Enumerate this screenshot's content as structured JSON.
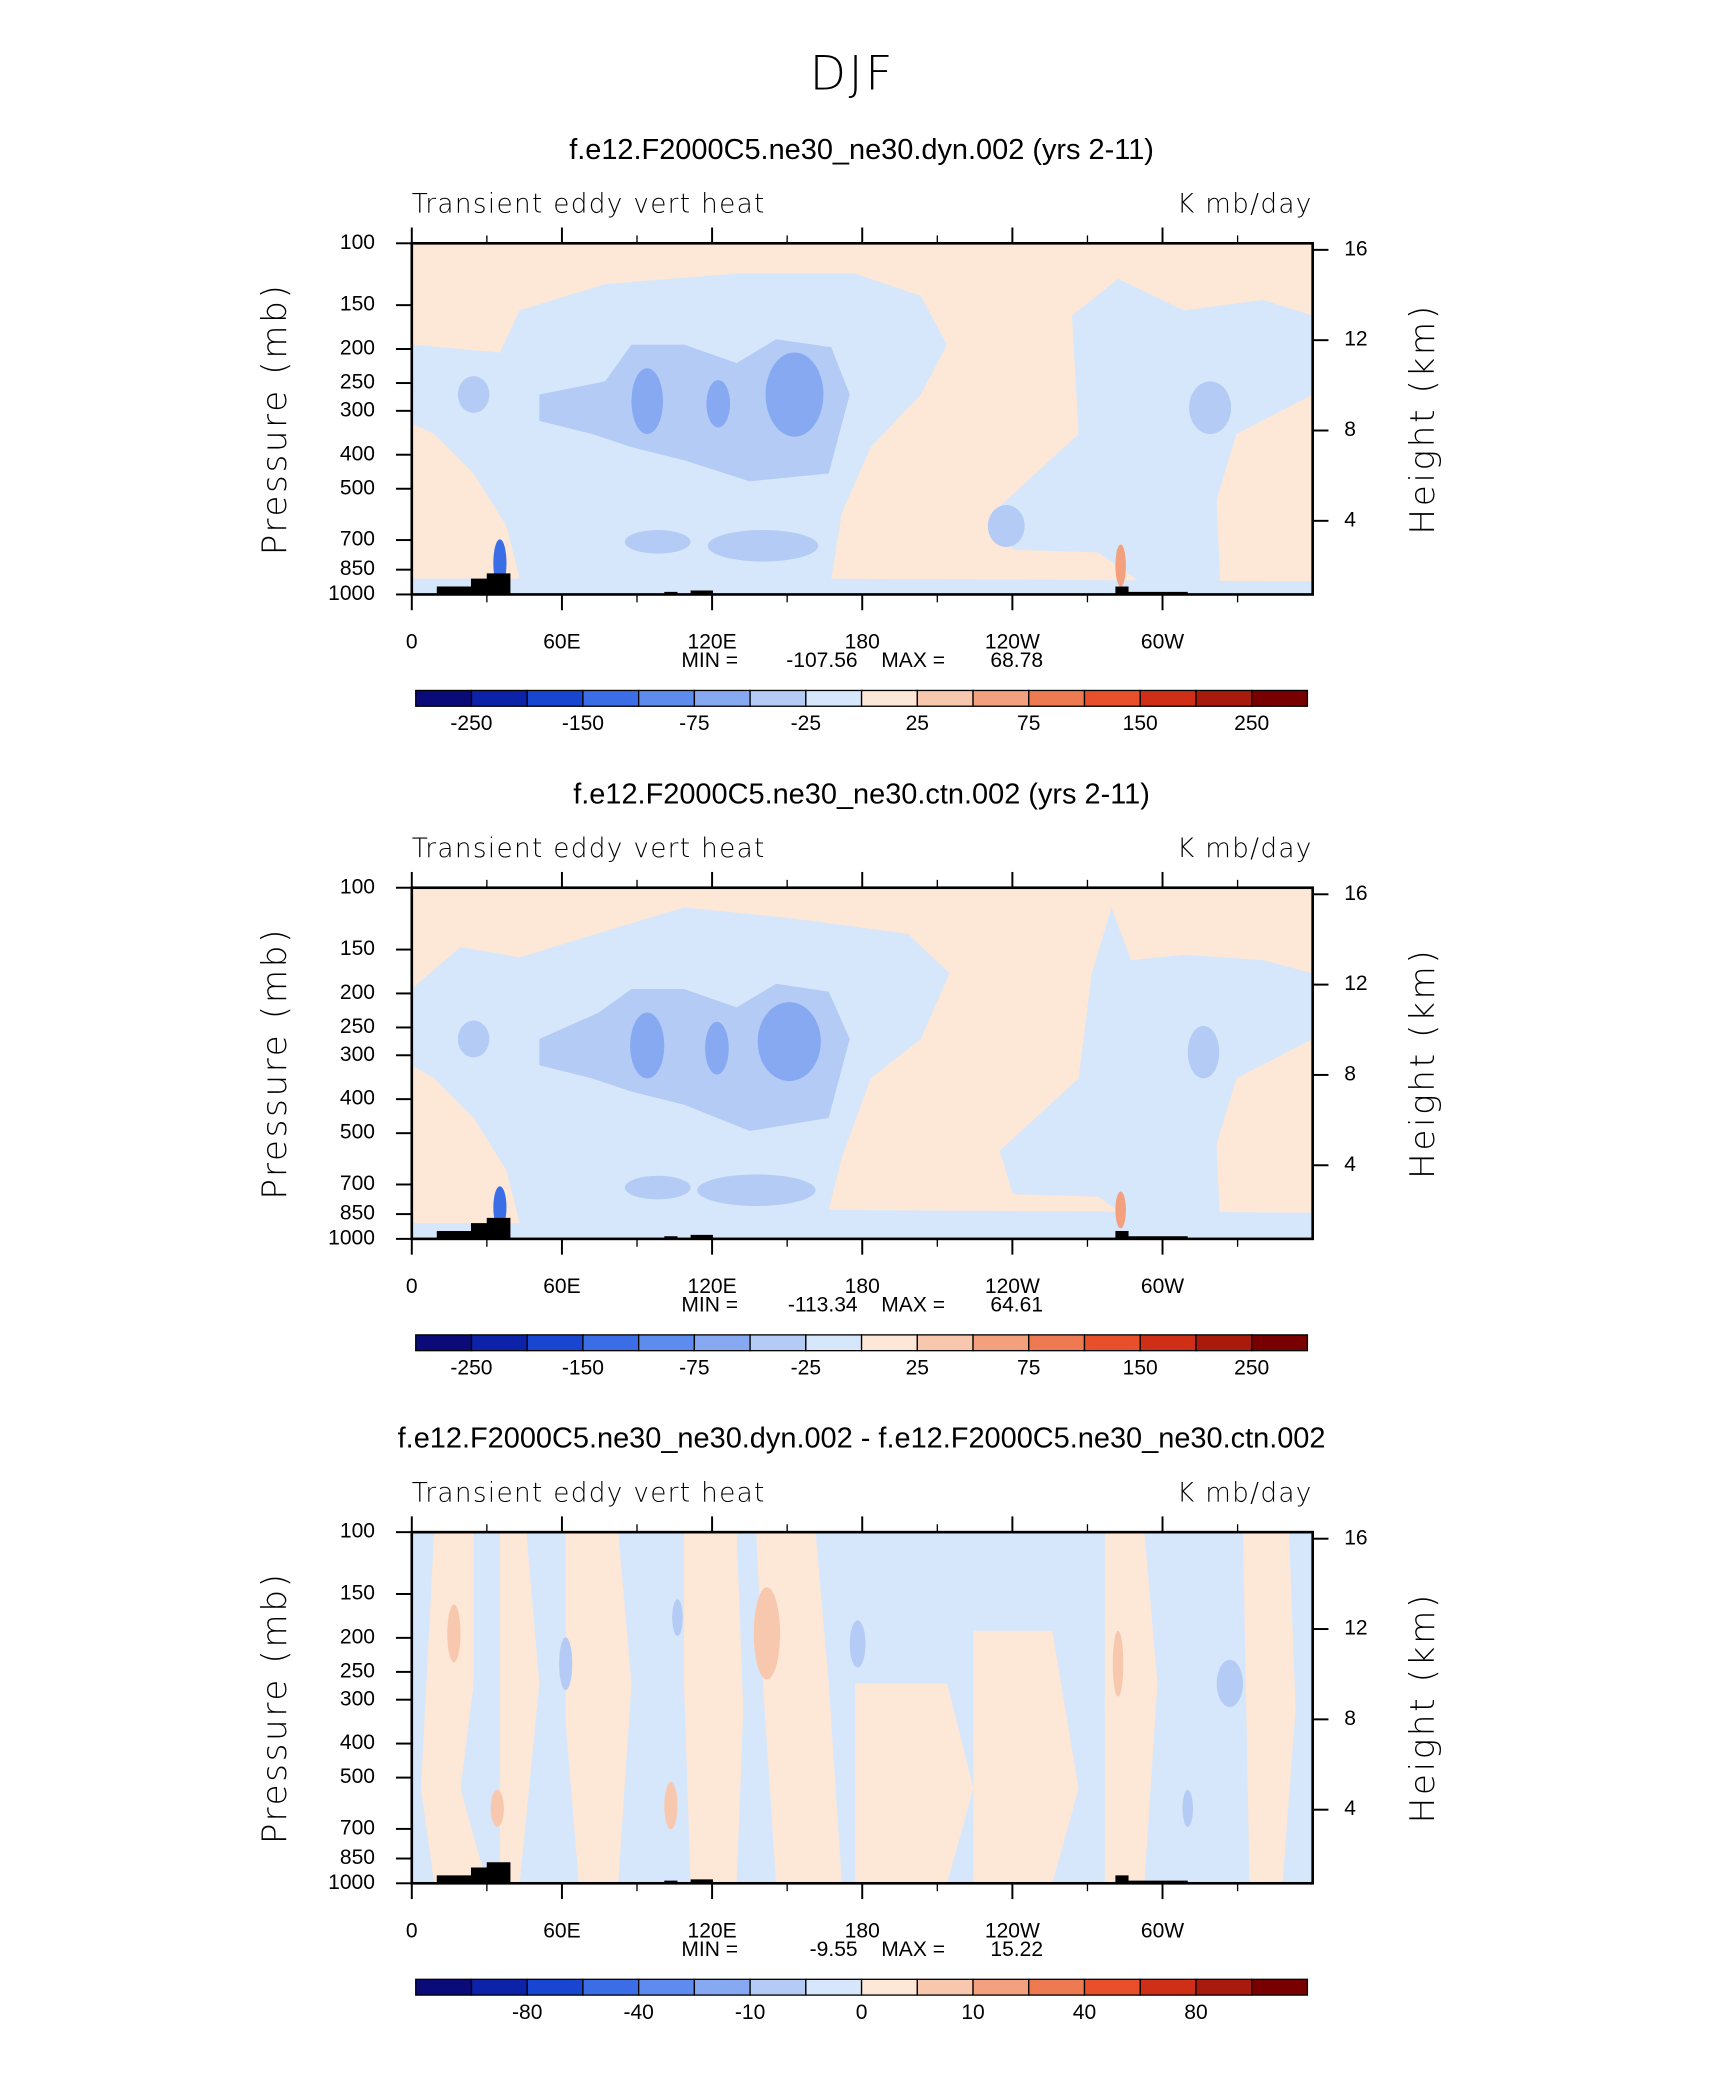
{
  "title": "DJF",
  "chart_data": [
    {
      "type": "contour",
      "title": "f.e12.F2000C5.ne30_ne30.dyn.002 (yrs 2-11)",
      "left_text": "Transient eddy vert heat",
      "right_text": "K mb/day",
      "ylabel": "Pressure (mb)",
      "y2label": "Height (km)",
      "ylim": [
        1000,
        100
      ],
      "yscale": "log",
      "yticks": [
        100,
        150,
        200,
        250,
        300,
        400,
        500,
        700,
        850,
        1000
      ],
      "y2lim": [
        0.74,
        16.29
      ],
      "y2ticks": [
        4,
        8,
        12,
        16
      ],
      "xlim": [
        0,
        360
      ],
      "xticks": [
        0,
        {
          "value": 60,
          "label": "60E"
        },
        {
          "value": 120,
          "label": "120E"
        },
        180,
        {
          "value": 240,
          "label": "120W"
        },
        {
          "value": 300,
          "label": "60W"
        }
      ],
      "min_label": "MIN =",
      "min": -107.56,
      "max_label": "MAX =",
      "max": 68.78,
      "colorbar": {
        "colors": [
          "#0a0a78",
          "#0c22a8",
          "#1846d0",
          "#3b6ee6",
          "#5d8cee",
          "#87a9f2",
          "#b4cbf6",
          "#d7e7fb",
          "#fde7d6",
          "#f8c8ae",
          "#f3a07f",
          "#ee7a52",
          "#e8502c",
          "#cf2f16",
          "#a81a0b",
          "#780000"
        ],
        "ticks": [
          -250,
          -150,
          -75,
          -25,
          25,
          75,
          150,
          250
        ]
      }
    },
    {
      "type": "contour",
      "title": "f.e12.F2000C5.ne30_ne30.ctn.002 (yrs 2-11)",
      "left_text": "Transient eddy vert heat",
      "right_text": "K mb/day",
      "ylabel": "Pressure (mb)",
      "y2label": "Height (km)",
      "ylim": [
        1000,
        100
      ],
      "yscale": "log",
      "yticks": [
        100,
        150,
        200,
        250,
        300,
        400,
        500,
        700,
        850,
        1000
      ],
      "y2lim": [
        0.74,
        16.29
      ],
      "y2ticks": [
        4,
        8,
        12,
        16
      ],
      "xlim": [
        0,
        360
      ],
      "xticks": [
        0,
        {
          "value": 60,
          "label": "60E"
        },
        {
          "value": 120,
          "label": "120E"
        },
        180,
        {
          "value": 240,
          "label": "120W"
        },
        {
          "value": 300,
          "label": "60W"
        }
      ],
      "min_label": "MIN =",
      "min": -113.34,
      "max_label": "MAX =",
      "max": 64.61,
      "colorbar": {
        "colors": [
          "#0a0a78",
          "#0c22a8",
          "#1846d0",
          "#3b6ee6",
          "#5d8cee",
          "#87a9f2",
          "#b4cbf6",
          "#d7e7fb",
          "#fde7d6",
          "#f8c8ae",
          "#f3a07f",
          "#ee7a52",
          "#e8502c",
          "#cf2f16",
          "#a81a0b",
          "#780000"
        ],
        "ticks": [
          -250,
          -150,
          -75,
          -25,
          25,
          75,
          150,
          250
        ]
      }
    },
    {
      "type": "contour",
      "title": "f.e12.F2000C5.ne30_ne30.dyn.002 - f.e12.F2000C5.ne30_ne30.ctn.002",
      "left_text": "Transient eddy vert heat",
      "right_text": "K mb/day",
      "ylabel": "Pressure (mb)",
      "y2label": "Height (km)",
      "ylim": [
        1000,
        100
      ],
      "yscale": "log",
      "yticks": [
        100,
        150,
        200,
        250,
        300,
        400,
        500,
        700,
        850,
        1000
      ],
      "y2lim": [
        0.74,
        16.29
      ],
      "y2ticks": [
        4,
        8,
        12,
        16
      ],
      "xlim": [
        0,
        360
      ],
      "xticks": [
        0,
        {
          "value": 60,
          "label": "60E"
        },
        {
          "value": 120,
          "label": "120E"
        },
        180,
        {
          "value": 240,
          "label": "120W"
        },
        {
          "value": 300,
          "label": "60W"
        }
      ],
      "min_label": "MIN =",
      "min": -9.55,
      "max_label": "MAX =",
      "max": 15.22,
      "colorbar": {
        "colors": [
          "#0a0a78",
          "#0c22a8",
          "#1846d0",
          "#3b6ee6",
          "#5d8cee",
          "#87a9f2",
          "#b4cbf6",
          "#d7e7fb",
          "#fde7d6",
          "#f8c8ae",
          "#f3a07f",
          "#ee7a52",
          "#e8502c",
          "#cf2f16",
          "#a81a0b",
          "#780000"
        ],
        "ticks": [
          -80,
          -40,
          -10,
          0,
          10,
          40,
          80
        ]
      }
    }
  ]
}
